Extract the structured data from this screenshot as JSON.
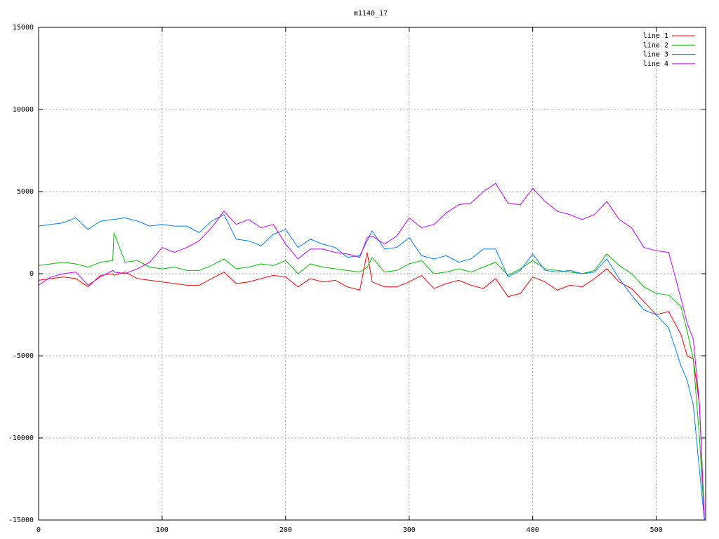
{
  "chart_data": {
    "type": "line",
    "title": "m1140_17",
    "x": [
      0,
      10,
      20,
      30,
      40,
      50,
      60,
      61,
      70,
      80,
      90,
      100,
      110,
      120,
      130,
      140,
      150,
      160,
      170,
      180,
      190,
      200,
      210,
      220,
      230,
      240,
      250,
      260,
      266,
      270,
      280,
      290,
      300,
      310,
      320,
      330,
      340,
      350,
      360,
      370,
      380,
      390,
      400,
      410,
      420,
      430,
      440,
      450,
      460,
      470,
      480,
      490,
      500,
      510,
      520,
      525,
      530,
      535,
      539
    ],
    "series": [
      {
        "name": "line 1",
        "color": "#ff0000",
        "values": [
          -400,
          -300,
          -200,
          -300,
          -800,
          -100,
          0,
          -100,
          100,
          -300,
          -400,
          -500,
          -600,
          -700,
          -700,
          -300,
          100,
          -600,
          -500,
          -300,
          -100,
          -200,
          -800,
          -300,
          -500,
          -400,
          -800,
          -1000,
          1300,
          -500,
          -800,
          -800,
          -500,
          -100,
          -900,
          -600,
          -400,
          -700,
          -900,
          -300,
          -1400,
          -1200,
          -200,
          -500,
          -1000,
          -700,
          -800,
          -300,
          300,
          -500,
          -900,
          -1700,
          -2500,
          -2300,
          -3700,
          -5000,
          -5200,
          -8000,
          -15000
        ]
      },
      {
        "name": "line 2",
        "color": "#00c000",
        "values": [
          500,
          600,
          700,
          600,
          400,
          700,
          800,
          2500,
          700,
          800,
          400,
          300,
          400,
          200,
          200,
          500,
          900,
          300,
          400,
          600,
          500,
          800,
          0,
          600,
          400,
          300,
          200,
          100,
          400,
          1000,
          100,
          200,
          600,
          800,
          0,
          100,
          300,
          100,
          400,
          700,
          -100,
          300,
          800,
          300,
          200,
          100,
          0,
          200,
          1200,
          500,
          0,
          -800,
          -1200,
          -1300,
          -2000,
          -3500,
          -5200,
          -10000,
          -15000
        ]
      },
      {
        "name": "line 3",
        "color": "#0080ff",
        "values": [
          2900,
          3000,
          3100,
          3400,
          2700,
          3200,
          3300,
          3300,
          3400,
          3200,
          2900,
          3000,
          2900,
          2900,
          2500,
          3200,
          3600,
          2100,
          2000,
          1700,
          2400,
          2700,
          1600,
          2100,
          1800,
          1600,
          1000,
          1100,
          2000,
          2600,
          1500,
          1600,
          2200,
          1100,
          900,
          1100,
          700,
          900,
          1500,
          1500,
          -200,
          200,
          1200,
          200,
          100,
          200,
          0,
          100,
          900,
          -300,
          -1300,
          -2200,
          -2500,
          -3300,
          -5600,
          -6500,
          -8000,
          -12000,
          -15000
        ]
      },
      {
        "name": "line 4",
        "color": "#c000ff",
        "values": [
          -700,
          -200,
          0,
          100,
          -700,
          -200,
          200,
          100,
          0,
          300,
          700,
          1600,
          1300,
          1600,
          2000,
          2800,
          3800,
          3000,
          3300,
          2800,
          3000,
          1800,
          900,
          1500,
          1500,
          1300,
          1200,
          1000,
          2200,
          2300,
          1800,
          2300,
          3400,
          2800,
          3000,
          3700,
          4200,
          4300,
          5000,
          5500,
          4300,
          4200,
          5200,
          4400,
          3800,
          3600,
          3300,
          3600,
          4400,
          3300,
          2800,
          1600,
          1400,
          1300,
          -1500,
          -3000,
          -4000,
          -8000,
          -15000
        ]
      }
    ],
    "xlim": [
      0,
      540
    ],
    "ylim": [
      -15000,
      15000
    ],
    "xticks": [
      0,
      100,
      200,
      300,
      400,
      500
    ],
    "yticks": [
      -15000,
      -10000,
      -5000,
      0,
      5000,
      10000,
      15000
    ],
    "grid": true,
    "legend": "top-right"
  }
}
